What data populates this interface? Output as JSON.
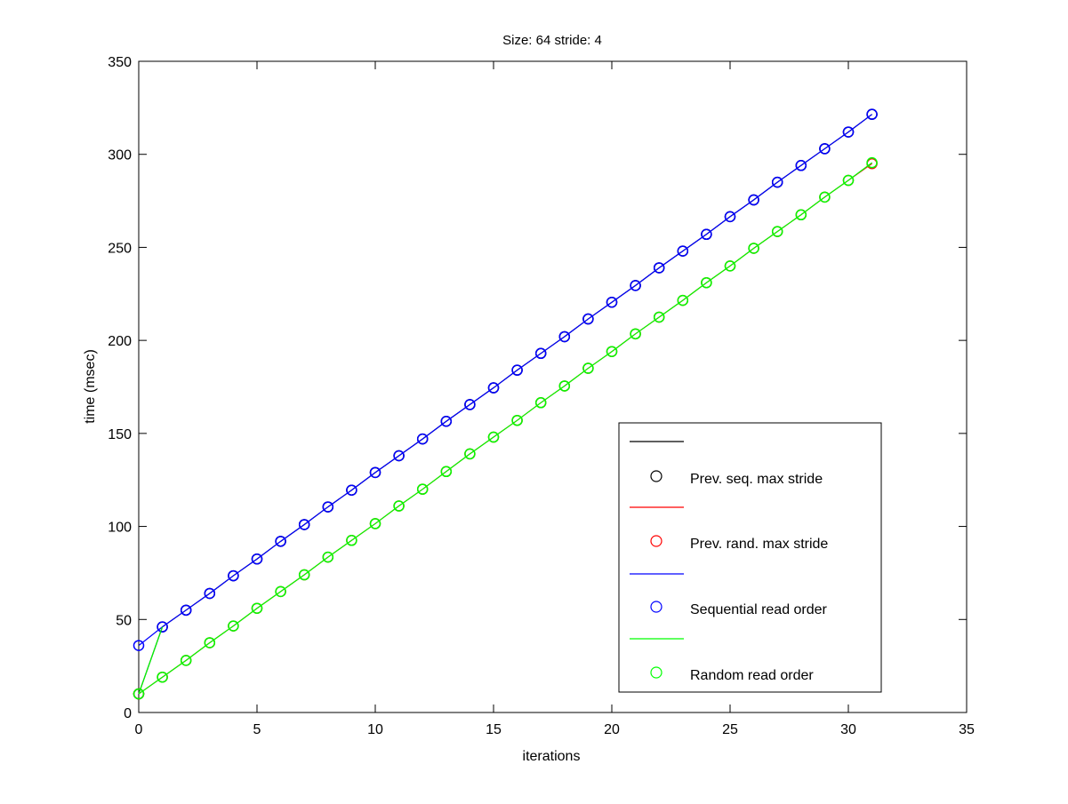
{
  "chart_data": {
    "type": "line",
    "title": "Size: 64 stride: 4",
    "xlabel": "iterations",
    "ylabel": "time (msec)",
    "xlim": [
      0,
      35
    ],
    "ylim": [
      0,
      350
    ],
    "xticks": [
      0,
      5,
      10,
      15,
      20,
      25,
      30,
      35
    ],
    "yticks": [
      0,
      50,
      100,
      150,
      200,
      250,
      300,
      350
    ],
    "grid": false,
    "legend_position": "bottom-right",
    "x": [
      0,
      1,
      2,
      3,
      4,
      5,
      6,
      7,
      8,
      9,
      10,
      11,
      12,
      13,
      14,
      15,
      16,
      17,
      18,
      19,
      20,
      21,
      22,
      23,
      24,
      25,
      26,
      27,
      28,
      29,
      30,
      31
    ],
    "series": [
      {
        "name": "Prev. seq. max stride",
        "color": "#000000",
        "values": [
          10,
          46,
          55,
          64,
          73.5,
          82.5,
          92,
          101,
          110.5,
          119.5,
          129,
          138,
          147,
          156.5,
          165.5,
          174.5,
          184,
          193,
          202,
          211.5,
          220.5,
          229.5,
          239,
          248,
          257,
          266.5,
          275.5,
          285,
          294,
          303,
          312,
          321.5
        ]
      },
      {
        "name": "Prev. rand. max stride",
        "color": "#ff0000",
        "values": [
          10,
          19,
          28,
          37.5,
          46.5,
          56,
          65,
          74,
          83.5,
          92.5,
          101.5,
          111,
          120,
          129.5,
          139,
          148,
          157,
          166.5,
          175.5,
          185,
          194,
          203.5,
          212.5,
          221.5,
          231,
          240,
          249.5,
          258.5,
          267.5,
          277,
          286,
          295
        ]
      },
      {
        "name": "Sequential read order",
        "color": "#0000ff",
        "values": [
          36,
          46,
          55,
          64,
          73.5,
          82.5,
          92,
          101,
          110.5,
          119.5,
          129,
          138,
          147,
          156.5,
          165.5,
          174.5,
          184,
          193,
          202,
          211.5,
          220.5,
          229.5,
          239,
          248,
          257,
          266.5,
          275.5,
          285,
          294,
          303,
          312,
          321.5
        ]
      },
      {
        "name": "Random read order",
        "color": "#00ff00",
        "values": [
          10,
          19,
          28,
          37.5,
          46.5,
          56,
          65,
          74,
          83.5,
          92.5,
          101.5,
          111,
          120,
          129.5,
          139,
          148,
          157,
          166.5,
          175.5,
          185,
          194,
          203.5,
          212.5,
          221.5,
          231,
          240,
          249.5,
          258.5,
          267.5,
          277,
          286,
          295.5
        ]
      }
    ],
    "legend": [
      {
        "kind": "line",
        "color": "#000000",
        "label": ""
      },
      {
        "kind": "marker",
        "color": "#000000",
        "label": "Prev. seq. max stride"
      },
      {
        "kind": "line",
        "color": "#ff0000",
        "label": ""
      },
      {
        "kind": "marker",
        "color": "#ff0000",
        "label": "Prev. rand. max stride"
      },
      {
        "kind": "line",
        "color": "#0000ff",
        "label": ""
      },
      {
        "kind": "marker",
        "color": "#0000ff",
        "label": "Sequential read order"
      },
      {
        "kind": "line",
        "color": "#00ff00",
        "label": ""
      },
      {
        "kind": "marker",
        "color": "#00ff00",
        "label": "Random read order"
      }
    ]
  }
}
